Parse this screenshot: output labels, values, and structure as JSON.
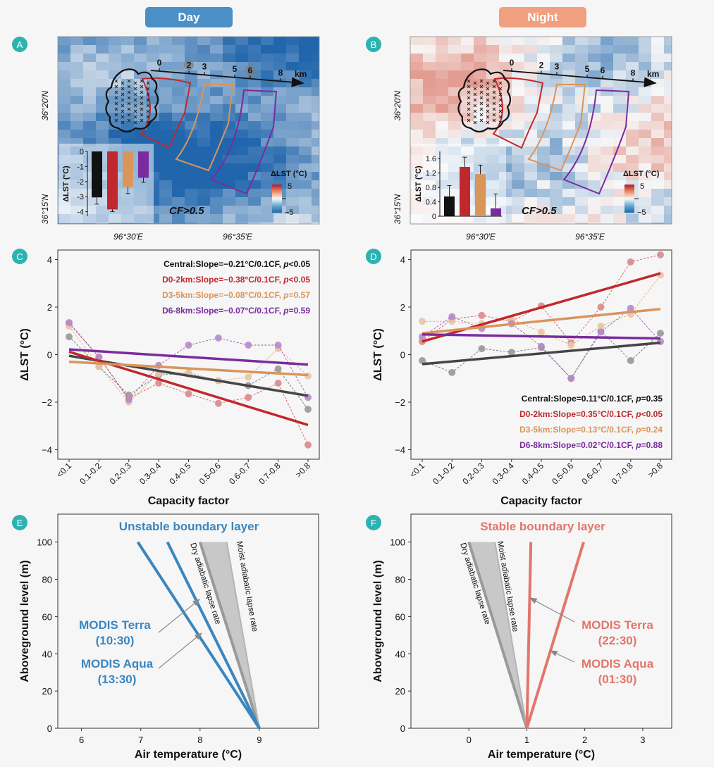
{
  "headers": {
    "day": "Day",
    "night": "Night",
    "day_color": "#4a8fc6",
    "night_color": "#f0a07f"
  },
  "panel_letters": [
    "A",
    "B",
    "C",
    "D",
    "E",
    "F"
  ],
  "colors": {
    "central": "#454545",
    "d0": "#c0282d",
    "d3": "#d9955a",
    "d6": "#7b2b9e",
    "day": "#3b86bf",
    "night": "#e2766b",
    "badge": "#2bb3b1"
  },
  "maps": {
    "lat_labels": [
      "36°20′N",
      "36°15′N"
    ],
    "lon_labels": [
      "96°30′E",
      "96°35′E"
    ],
    "scale_ticks": [
      "0",
      "2",
      "3",
      "5",
      "6",
      "8"
    ],
    "scale_unit": "km",
    "cf_label": "CF>0.5",
    "legend_title": "ΔLST (°C)",
    "legend_max": "5",
    "legend_min": "−5",
    "day": {
      "inset_ylabel": "ΔLST (°C)",
      "inset_ticks": [
        "0",
        "-1",
        "-2",
        "-3",
        "-4"
      ],
      "inset_range": [
        -4.3,
        0
      ],
      "bars": [
        -3.05,
        -3.85,
        -2.35,
        -1.75
      ],
      "errors": [
        0.45,
        0.15,
        0.45,
        0.3
      ]
    },
    "night": {
      "inset_ylabel": "ΔLST (°C)",
      "inset_ticks": [
        "0",
        "0.4",
        "0.8",
        "1.2",
        "1.6"
      ],
      "inset_range": [
        0,
        1.8
      ],
      "bars": [
        0.55,
        1.37,
        1.17,
        0.22
      ],
      "errors": [
        0.3,
        0.27,
        0.25,
        0.4
      ]
    }
  },
  "chart_data": [
    {
      "panel": "C",
      "type": "line",
      "xlabel": "Capacity factor",
      "ylabel": "ΔLST (°C)",
      "categories": [
        "<0.1",
        "0.1-0.2",
        "0.2-0.3",
        "0.3-0.4",
        "0.4-0.5",
        "0.5-0.6",
        "0.6-0.7",
        "0.7-0.8",
        ">0.8"
      ],
      "ylim": [
        -4.4,
        4.4
      ],
      "yticks": [
        4,
        2,
        0,
        -2,
        -4
      ],
      "ytick_labels": [
        "4",
        "2",
        "0",
        "−2",
        "−4"
      ],
      "series": [
        {
          "name": "Central",
          "key": "central",
          "values": [
            0.75,
            -0.5,
            -1.7,
            -0.85,
            -0.8,
            -1.1,
            -1.3,
            -0.6,
            -2.3
          ],
          "fit": [
            -0.05,
            -1.73
          ]
        },
        {
          "name": "D0-2km",
          "key": "d0",
          "values": [
            1.3,
            -0.1,
            -1.85,
            -1.2,
            -1.65,
            -2.05,
            -1.8,
            -1.2,
            -3.8
          ],
          "fit": [
            0.12,
            -2.96
          ]
        },
        {
          "name": "D3-5km",
          "key": "d3",
          "values": [
            1.2,
            -0.5,
            -2.0,
            -0.8,
            -0.75,
            -1.1,
            -0.95,
            0.25,
            -0.9
          ],
          "fit": [
            -0.3,
            -0.86
          ]
        },
        {
          "name": "D6-8km",
          "key": "d6",
          "values": [
            1.35,
            -0.1,
            -1.9,
            -0.45,
            0.4,
            0.7,
            0.4,
            0.4,
            -1.8
          ],
          "fit": [
            0.22,
            -0.42
          ]
        }
      ],
      "annotations": [
        {
          "key": "central",
          "prefix": "Central:Slope=−0.21°C/0.1CF, ",
          "p": "p",
          "suffix": "<0.05"
        },
        {
          "key": "d0",
          "prefix": "D0-2km:Slope=−0.38°C/0.1CF, ",
          "p": "p",
          "suffix": "<0.05"
        },
        {
          "key": "d3",
          "prefix": "D3-5km:Slope=−0.08°C/0.1CF, ",
          "p": "p",
          "suffix": "=0.57"
        },
        {
          "key": "d6",
          "prefix": "D6-8km:Slope=−0.07°C/0.1CF, ",
          "p": "p",
          "suffix": "=0.59"
        }
      ]
    },
    {
      "panel": "D",
      "type": "line",
      "xlabel": "Capacity factor",
      "ylabel": "ΔLST (°C)",
      "categories": [
        "<0.1",
        "0.1-0.2",
        "0.2-0.3",
        "0.3-0.4",
        "0.4-0.5",
        "0.5-0.6",
        "0.6-0.7",
        "0.7-0.8",
        ">0.8"
      ],
      "ylim": [
        -4.4,
        4.4
      ],
      "yticks": [
        4,
        2,
        0,
        -2,
        -4
      ],
      "ytick_labels": [
        "4",
        "2",
        "0",
        "−2",
        "−4"
      ],
      "series": [
        {
          "name": "Central",
          "key": "central",
          "values": [
            -0.25,
            -0.75,
            0.25,
            0.1,
            0.3,
            -1.0,
            1.0,
            -0.25,
            0.9
          ],
          "fit": [
            -0.4,
            0.5
          ]
        },
        {
          "name": "D0-2km",
          "key": "d0",
          "values": [
            0.55,
            1.5,
            1.65,
            1.4,
            2.05,
            0.5,
            2.0,
            3.9,
            4.2
          ],
          "fit": [
            0.55,
            3.42
          ]
        },
        {
          "name": "D3-5km",
          "key": "d3",
          "values": [
            1.4,
            1.4,
            1.3,
            1.5,
            0.95,
            0.4,
            1.2,
            1.7,
            3.35
          ],
          "fit": [
            0.9,
            1.92
          ]
        },
        {
          "name": "D6-8km",
          "key": "d6",
          "values": [
            0.75,
            1.6,
            1.1,
            1.3,
            0.35,
            -1.0,
            0.95,
            1.95,
            0.55
          ],
          "fit": [
            0.85,
            0.68
          ]
        }
      ],
      "annotations": [
        {
          "key": "central",
          "prefix": "Central:Slope=0.11°C/0.1CF, ",
          "p": "p",
          "suffix": "=0.35"
        },
        {
          "key": "d0",
          "prefix": "D0-2km:Slope=0.35°C/0.1CF, ",
          "p": "p",
          "suffix": "<0.05"
        },
        {
          "key": "d3",
          "prefix": "D3-5km:Slope=0.13°C/0.1CF, ",
          "p": "p",
          "suffix": "=0.24"
        },
        {
          "key": "d6",
          "prefix": "D6-8km:Slope=0.02°C/0.1CF, ",
          "p": "p",
          "suffix": "=0.88"
        }
      ]
    },
    {
      "panel": "E",
      "type": "line",
      "title": "Unstable boundary layer",
      "xlabel": "Air temperature (°C)",
      "ylabel": "Aboveground level (m)",
      "xlim": [
        5.6,
        10
      ],
      "ylim": [
        0,
        115
      ],
      "xticks": [
        6,
        7,
        8,
        9
      ],
      "yticks": [
        0,
        20,
        40,
        60,
        80,
        100
      ],
      "lines": [
        {
          "name": "MODIS Terra",
          "time": "(10:30)",
          "x": [
            9,
            7.45
          ],
          "y": [
            0,
            100
          ]
        },
        {
          "name": "MODIS Aqua",
          "time": "(13:30)",
          "x": [
            9,
            6.95
          ],
          "y": [
            0,
            100
          ]
        }
      ],
      "dry_lapse": {
        "label": "Dry adiabatic lapse rate",
        "x": [
          9,
          8.0
        ],
        "y": [
          0,
          100
        ]
      },
      "moist_lapse": {
        "label": "Moist adiabatic lapse rate",
        "x": [
          9,
          8.45
        ],
        "y": [
          0,
          100
        ]
      }
    },
    {
      "panel": "F",
      "type": "line",
      "title": "Stable boundary layer",
      "xlabel": "Air temperature (°C)",
      "ylabel": "Aboveground level (m)",
      "xlim": [
        -1.0,
        3.5
      ],
      "ylim": [
        0,
        115
      ],
      "xticks": [
        0,
        1,
        2,
        3
      ],
      "yticks": [
        0,
        20,
        40,
        60,
        80,
        100
      ],
      "lines": [
        {
          "name": "MODIS Terra",
          "time": "(22:30)",
          "x": [
            1,
            1.07
          ],
          "y": [
            0,
            100
          ]
        },
        {
          "name": "MODIS Aqua",
          "time": "(01:30)",
          "x": [
            1,
            1.98
          ],
          "y": [
            0,
            100
          ]
        }
      ],
      "dry_lapse": {
        "label": "Dry adiabatic lapse rate",
        "x": [
          1,
          0.0
        ],
        "y": [
          0,
          100
        ]
      },
      "moist_lapse": {
        "label": "Moist adiabatic lapse rate",
        "x": [
          1,
          0.45
        ],
        "y": [
          0,
          100
        ]
      }
    }
  ]
}
